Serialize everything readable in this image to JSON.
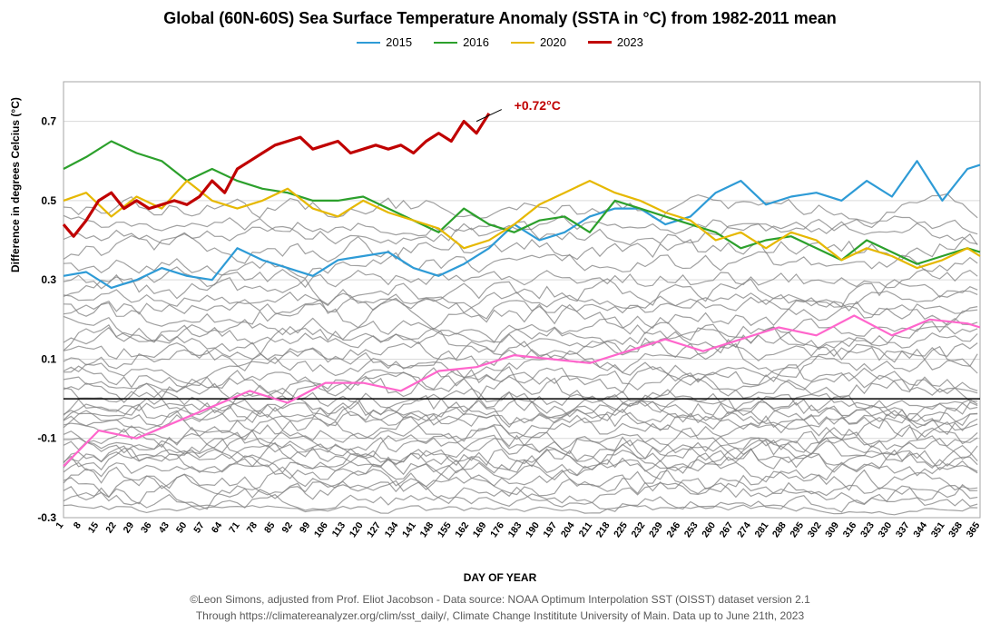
{
  "title": "Global (60N-60S) Sea Surface Temperature Anomaly (SSTA in °C) from 1982-2011 mean",
  "title_fontsize": 18,
  "xlabel": "DAY OF YEAR",
  "ylabel": "Difference in degrees Celcius (°C)",
  "credit_line1": "©Leon Simons, adjusted from Prof. Eliot Jacobson - Data source: NOAA Optimum Interpolation SST (OISST) dataset version 2.1",
  "credit_line2": "Through https://climatereanalyzer.org/clim/sst_daily/, Climate Change Instititute University of Main. Data up to June 21th, 2023",
  "background_color": "#ffffff",
  "grid_color": "#d9d9d9",
  "border_color": "#bfbfbf",
  "xlim": [
    1,
    365
  ],
  "ylim": [
    -0.3,
    0.8
  ],
  "yticks": [
    -0.3,
    -0.1,
    0.1,
    0.3,
    0.5,
    0.7
  ],
  "xtick_start": 1,
  "xtick_step": 7,
  "xtick_end": 365,
  "zero_line_value": 0.0,
  "annotation": {
    "text": "+0.72°C",
    "color": "#c00000",
    "x_day": 180,
    "y_value": 0.74,
    "line_from_day": 175,
    "line_from_value": 0.73,
    "line_to_day": 165,
    "line_to_value": 0.7
  },
  "legend": [
    {
      "label": "2015",
      "color": "#2e9bd6",
      "width": 2
    },
    {
      "label": "2016",
      "color": "#2ca02c",
      "width": 2
    },
    {
      "label": "2020",
      "color": "#e6b800",
      "width": 2
    },
    {
      "label": "2023",
      "color": "#c00000",
      "width": 3
    }
  ],
  "gray_line_color": "#808080",
  "gray_line_width": 1.2,
  "gray_line_count": 38,
  "pink_color": "#ff66cc",
  "series": {
    "s2015": {
      "color": "#2e9bd6",
      "width": 2.2,
      "days": [
        1,
        10,
        20,
        30,
        40,
        50,
        60,
        70,
        80,
        90,
        100,
        110,
        120,
        130,
        140,
        150,
        160,
        170,
        180,
        190,
        200,
        210,
        220,
        230,
        240,
        250,
        260,
        270,
        280,
        290,
        300,
        310,
        320,
        330,
        340,
        350,
        360,
        365
      ],
      "values": [
        0.31,
        0.32,
        0.28,
        0.3,
        0.33,
        0.31,
        0.3,
        0.38,
        0.35,
        0.33,
        0.31,
        0.35,
        0.36,
        0.37,
        0.33,
        0.31,
        0.34,
        0.38,
        0.44,
        0.4,
        0.42,
        0.46,
        0.48,
        0.48,
        0.44,
        0.46,
        0.52,
        0.55,
        0.49,
        0.51,
        0.52,
        0.5,
        0.55,
        0.51,
        0.6,
        0.5,
        0.58,
        0.59
      ]
    },
    "s2016": {
      "color": "#2ca02c",
      "width": 2.2,
      "days": [
        1,
        10,
        20,
        30,
        40,
        50,
        60,
        70,
        80,
        90,
        100,
        110,
        120,
        130,
        140,
        150,
        160,
        170,
        180,
        190,
        200,
        210,
        220,
        230,
        240,
        250,
        260,
        270,
        280,
        290,
        300,
        310,
        320,
        330,
        340,
        350,
        360,
        365
      ],
      "values": [
        0.58,
        0.61,
        0.65,
        0.62,
        0.6,
        0.55,
        0.58,
        0.55,
        0.53,
        0.52,
        0.5,
        0.5,
        0.51,
        0.48,
        0.45,
        0.42,
        0.48,
        0.44,
        0.42,
        0.45,
        0.46,
        0.42,
        0.5,
        0.48,
        0.46,
        0.44,
        0.42,
        0.38,
        0.4,
        0.41,
        0.38,
        0.35,
        0.4,
        0.37,
        0.34,
        0.36,
        0.38,
        0.37
      ]
    },
    "s2020": {
      "color": "#e6b800",
      "width": 2.2,
      "days": [
        1,
        10,
        20,
        30,
        40,
        50,
        60,
        70,
        80,
        90,
        100,
        110,
        120,
        130,
        140,
        150,
        160,
        170,
        180,
        190,
        200,
        210,
        220,
        230,
        240,
        250,
        260,
        270,
        280,
        290,
        300,
        310,
        320,
        330,
        340,
        350,
        360,
        365
      ],
      "values": [
        0.5,
        0.52,
        0.46,
        0.51,
        0.48,
        0.55,
        0.5,
        0.48,
        0.5,
        0.53,
        0.48,
        0.46,
        0.5,
        0.47,
        0.45,
        0.43,
        0.38,
        0.4,
        0.44,
        0.49,
        0.52,
        0.55,
        0.52,
        0.5,
        0.47,
        0.45,
        0.4,
        0.42,
        0.38,
        0.42,
        0.4,
        0.35,
        0.38,
        0.36,
        0.33,
        0.35,
        0.38,
        0.36
      ]
    },
    "s2023": {
      "color": "#c00000",
      "width": 3.2,
      "days": [
        1,
        5,
        10,
        15,
        20,
        25,
        30,
        35,
        40,
        45,
        50,
        55,
        60,
        65,
        70,
        75,
        80,
        85,
        90,
        95,
        100,
        105,
        110,
        115,
        120,
        125,
        130,
        135,
        140,
        145,
        150,
        155,
        160,
        165,
        170
      ],
      "values": [
        0.44,
        0.41,
        0.45,
        0.5,
        0.52,
        0.48,
        0.5,
        0.48,
        0.49,
        0.5,
        0.49,
        0.51,
        0.55,
        0.52,
        0.58,
        0.6,
        0.62,
        0.64,
        0.65,
        0.66,
        0.63,
        0.64,
        0.65,
        0.62,
        0.63,
        0.64,
        0.63,
        0.64,
        0.62,
        0.65,
        0.67,
        0.65,
        0.7,
        0.67,
        0.72
      ]
    },
    "pink_mean": {
      "color": "#ff66cc",
      "width": 2.2,
      "days": [
        1,
        15,
        30,
        45,
        60,
        75,
        90,
        105,
        120,
        135,
        150,
        165,
        180,
        195,
        210,
        225,
        240,
        255,
        270,
        285,
        300,
        315,
        330,
        345,
        360,
        365
      ],
      "values": [
        -0.17,
        -0.08,
        -0.1,
        -0.06,
        -0.02,
        0.02,
        -0.01,
        0.04,
        0.04,
        0.02,
        0.07,
        0.08,
        0.11,
        0.1,
        0.09,
        0.12,
        0.15,
        0.12,
        0.15,
        0.18,
        0.16,
        0.21,
        0.16,
        0.2,
        0.19,
        0.18
      ]
    }
  },
  "gray_bands": [
    {
      "mid": 0.48,
      "amp": 0.05
    },
    {
      "mid": 0.44,
      "amp": 0.04
    },
    {
      "mid": 0.42,
      "amp": 0.05
    },
    {
      "mid": 0.38,
      "amp": 0.06
    },
    {
      "mid": 0.34,
      "amp": 0.05
    },
    {
      "mid": 0.3,
      "amp": 0.05
    },
    {
      "mid": 0.27,
      "amp": 0.06
    },
    {
      "mid": 0.25,
      "amp": 0.04
    },
    {
      "mid": 0.23,
      "amp": 0.05
    },
    {
      "mid": 0.21,
      "amp": 0.06
    },
    {
      "mid": 0.18,
      "amp": 0.05
    },
    {
      "mid": 0.16,
      "amp": 0.05
    },
    {
      "mid": 0.15,
      "amp": 0.06
    },
    {
      "mid": 0.12,
      "amp": 0.05
    },
    {
      "mid": 0.1,
      "amp": 0.06
    },
    {
      "mid": 0.08,
      "amp": 0.05
    },
    {
      "mid": 0.05,
      "amp": 0.06
    },
    {
      "mid": 0.04,
      "amp": 0.05
    },
    {
      "mid": 0.02,
      "amp": 0.06
    },
    {
      "mid": 0.0,
      "amp": 0.05
    },
    {
      "mid": -0.02,
      "amp": 0.06
    },
    {
      "mid": -0.03,
      "amp": 0.05
    },
    {
      "mid": -0.04,
      "amp": 0.06
    },
    {
      "mid": -0.05,
      "amp": 0.05
    },
    {
      "mid": -0.06,
      "amp": 0.06
    },
    {
      "mid": -0.08,
      "amp": 0.05
    },
    {
      "mid": -0.1,
      "amp": 0.06
    },
    {
      "mid": -0.12,
      "amp": 0.05
    },
    {
      "mid": -0.13,
      "amp": 0.05
    },
    {
      "mid": -0.14,
      "amp": 0.06
    },
    {
      "mid": -0.15,
      "amp": 0.05
    },
    {
      "mid": -0.16,
      "amp": 0.06
    },
    {
      "mid": -0.18,
      "amp": 0.05
    },
    {
      "mid": -0.2,
      "amp": 0.06
    },
    {
      "mid": -0.22,
      "amp": 0.05
    },
    {
      "mid": -0.24,
      "amp": 0.05
    },
    {
      "mid": -0.26,
      "amp": 0.04
    },
    {
      "mid": -0.28,
      "amp": 0.02
    }
  ]
}
